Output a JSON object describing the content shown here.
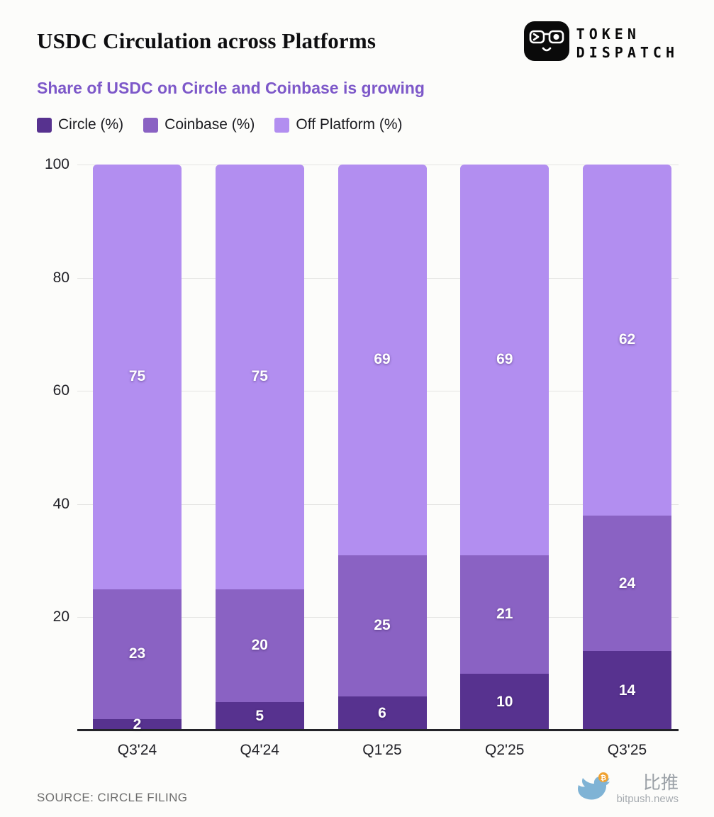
{
  "page": {
    "title": "USDC Circulation across Platforms",
    "subtitle": "Share of USDC on Circle and Coinbase is growing",
    "source": "SOURCE: CIRCLE FILING"
  },
  "brand": {
    "logo_line1": "TOKEN",
    "logo_line2": "DISPATCH",
    "footer_cjk": "比推",
    "footer_domain": "bitpush.news"
  },
  "colors": {
    "circle": "#57328f",
    "coinbase": "#8a62c3",
    "off_platform": "#b28ef0",
    "subtitle_accent": "#7d58c9",
    "bird_blue": "#7fb3d5",
    "bitcoin_orange": "#f0a232"
  },
  "chart_data": {
    "type": "bar",
    "stacked": true,
    "title": "USDC Circulation across Platforms",
    "subtitle": "Share of USDC on Circle and Coinbase is growing",
    "categories": [
      "Q3'24",
      "Q4'24",
      "Q1'25",
      "Q2'25",
      "Q3'25"
    ],
    "series": [
      {
        "name": "Circle (%)",
        "color_key": "circle",
        "values": [
          2,
          5,
          6,
          10,
          14
        ]
      },
      {
        "name": "Coinbase (%)",
        "color_key": "coinbase",
        "values": [
          23,
          20,
          25,
          21,
          24
        ]
      },
      {
        "name": "Off Platform (%)",
        "color_key": "off_platform",
        "values": [
          75,
          75,
          69,
          69,
          62
        ]
      }
    ],
    "ylim": [
      0,
      100
    ],
    "yticks": [
      20,
      40,
      60,
      80,
      100
    ],
    "grid": true,
    "legend_position": "top",
    "value_labels": true
  }
}
